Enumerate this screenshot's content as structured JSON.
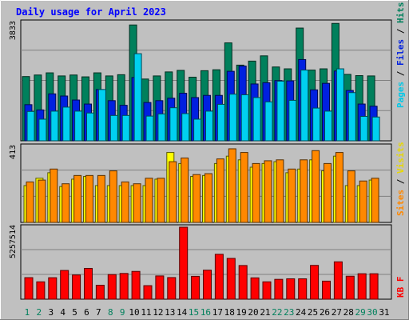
{
  "chart_data": [
    {
      "type": "bar",
      "title": "Daily usage for April 2023",
      "categories": [
        "1",
        "2",
        "3",
        "4",
        "5",
        "6",
        "7",
        "8",
        "9",
        "10",
        "11",
        "12",
        "13",
        "14",
        "15",
        "16",
        "17",
        "18",
        "19",
        "20",
        "21",
        "22",
        "23",
        "24",
        "25",
        "26",
        "27",
        "28",
        "29",
        "30",
        "31"
      ],
      "weekend_days": [
        "1",
        "2",
        "8",
        "9",
        "15",
        "16",
        "22",
        "23",
        "29",
        "30"
      ],
      "ylim": [
        0,
        3833
      ],
      "ymax_label": "3833",
      "axis_label_parts": [
        "Pages",
        "Files",
        "Hits"
      ],
      "axis_label_separator": " / ",
      "series": [
        {
          "name": "Hits",
          "color": "#00805c",
          "values": [
            2080,
            2130,
            2200,
            2100,
            2130,
            2070,
            2200,
            2100,
            2140,
            3750,
            2000,
            2100,
            2230,
            2280,
            2060,
            2270,
            2300,
            3170,
            2450,
            2580,
            2750,
            2390,
            2330,
            3650,
            2290,
            2330,
            3800,
            2150,
            2110,
            2100,
            0
          ]
        },
        {
          "name": "Files",
          "color": "#0020e0",
          "values": [
            1170,
            1000,
            1520,
            1450,
            1320,
            1190,
            1660,
            1300,
            1150,
            2050,
            1240,
            1300,
            1380,
            1540,
            1400,
            1470,
            1470,
            2250,
            2420,
            1840,
            1880,
            1950,
            1940,
            2630,
            1650,
            1860,
            2260,
            1630,
            1190,
            1120,
            0
          ]
        },
        {
          "name": "Pages",
          "color": "#00d0f0",
          "values": [
            950,
            700,
            960,
            1090,
            960,
            900,
            1660,
            820,
            820,
            2820,
            800,
            870,
            1070,
            880,
            700,
            960,
            1180,
            1510,
            1490,
            1400,
            1260,
            1930,
            1310,
            2290,
            1060,
            960,
            2330,
            1560,
            790,
            770,
            0
          ]
        }
      ]
    },
    {
      "type": "bar",
      "ylim": [
        0,
        413
      ],
      "ymax_label": "413",
      "axis_label_parts": [
        "Sites",
        "Visits"
      ],
      "axis_label_separator": " / ",
      "series": [
        {
          "name": "Visits",
          "color": "#ffff00",
          "values": [
            200,
            240,
            270,
            195,
            235,
            250,
            200,
            200,
            200,
            200,
            200,
            235,
            380,
            320,
            250,
            255,
            320,
            360,
            340,
            300,
            320,
            330,
            270,
            290,
            340,
            280,
            360,
            200,
            200,
            230,
            0
          ]
        },
        {
          "name": "Sites",
          "color": "#ff8800",
          "values": [
            220,
            230,
            290,
            210,
            255,
            255,
            255,
            280,
            220,
            210,
            240,
            240,
            330,
            350,
            260,
            265,
            345,
            400,
            380,
            320,
            335,
            340,
            290,
            340,
            390,
            320,
            380,
            280,
            225,
            240,
            0
          ]
        }
      ]
    },
    {
      "type": "bar",
      "ylim": [
        0,
        5257514
      ],
      "ymax_label": "5257514",
      "axis_label": "KB F",
      "series": [
        {
          "name": "KB F",
          "color": "#ff0000",
          "values": [
            1575000,
            1270000,
            1570000,
            2100000,
            1770000,
            2250000,
            1020000,
            1800000,
            1880000,
            2030000,
            990000,
            1700000,
            1580000,
            5257514,
            1670000,
            2120000,
            3280000,
            2980000,
            2460000,
            1560000,
            1270000,
            1450000,
            1490000,
            1490000,
            2470000,
            1320000,
            2730000,
            1680000,
            1860000,
            1860000,
            0
          ]
        }
      ]
    }
  ]
}
